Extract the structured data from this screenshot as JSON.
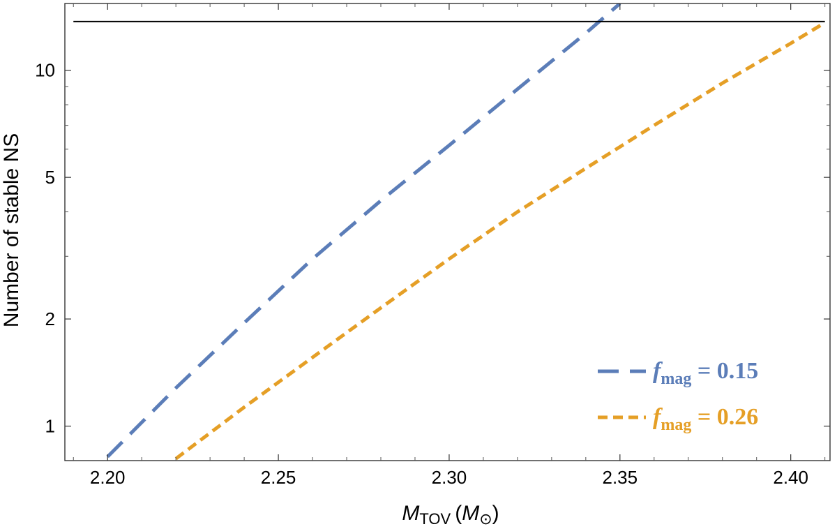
{
  "chart_data": {
    "type": "line",
    "xlabel": {
      "main": "M",
      "sub": "TOV",
      "unit_open": "(",
      "unit_main": "M",
      "unit_sub": "⊙",
      "unit_close": ")"
    },
    "ylabel": "Number of stable NS",
    "x_ticks": [
      "2.20",
      "2.25",
      "2.30",
      "2.35",
      "2.40"
    ],
    "y_ticks": [
      "1",
      "2",
      "5",
      "10"
    ],
    "xlim": [
      2.1875,
      2.4115
    ],
    "ylim": [
      0.8,
      15.4
    ],
    "yscale": "log",
    "grid": false,
    "legend_position": "bottom-right",
    "reference_line": {
      "y": 13.7,
      "x_range": [
        2.19,
        2.41
      ],
      "color": "#000000"
    },
    "series": [
      {
        "name_main": "f",
        "name_sub": "mag",
        "name_rest": " = 0.15",
        "color": "#5b7db8",
        "dash": "long-dash",
        "x": [
          2.2,
          2.22,
          2.24,
          2.26,
          2.28,
          2.3,
          2.32,
          2.34,
          2.35
        ],
        "y": [
          0.82,
          1.28,
          1.95,
          2.95,
          4.3,
          6.15,
          8.85,
          12.7,
          15.4
        ]
      },
      {
        "name_main": "f",
        "name_sub": "mag",
        "name_rest": " = 0.26",
        "color": "#e59f26",
        "dash": "short-dash",
        "x": [
          2.22,
          2.24,
          2.26,
          2.28,
          2.3,
          2.32,
          2.34,
          2.36,
          2.38,
          2.4,
          2.41
        ],
        "y": [
          0.81,
          1.13,
          1.56,
          2.15,
          2.95,
          4.0,
          5.3,
          7.0,
          9.2,
          11.9,
          13.6
        ]
      }
    ]
  }
}
